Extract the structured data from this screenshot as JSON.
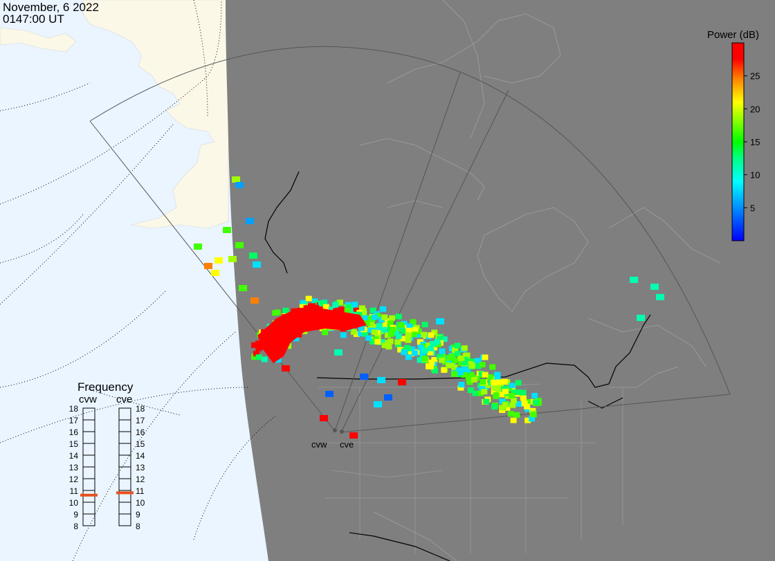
{
  "header": {
    "date": "November, 6 2022",
    "time": "0147:00 UT"
  },
  "colorbar": {
    "title": "Power (dB)",
    "ticks": [
      "25",
      "20",
      "15",
      "10",
      "5"
    ],
    "tick_values": [
      25,
      20,
      15,
      10,
      5
    ],
    "range": [
      0,
      30
    ],
    "stops": [
      "#0000ff",
      "#0080ff",
      "#00ffff",
      "#00ff80",
      "#00ff00",
      "#80ff00",
      "#ffff00",
      "#ff8000",
      "#ff0000"
    ]
  },
  "frequency": {
    "title": "Frequency",
    "radars": [
      {
        "name": "cvw",
        "value_mhz": 10.6
      },
      {
        "name": "cve",
        "value_mhz": 10.8
      }
    ],
    "ticks": [
      "18",
      "17",
      "16",
      "15",
      "14",
      "13",
      "12",
      "11",
      "10",
      "9",
      "8"
    ],
    "marker_color": "#e85020"
  },
  "sites": [
    {
      "name": "cvw"
    },
    {
      "name": "cve"
    }
  ],
  "colors": {
    "land_dark": "#7f7f7f",
    "ocean": "#eaf5ff",
    "land_light": "#fbf8e8",
    "border": "#000000"
  }
}
